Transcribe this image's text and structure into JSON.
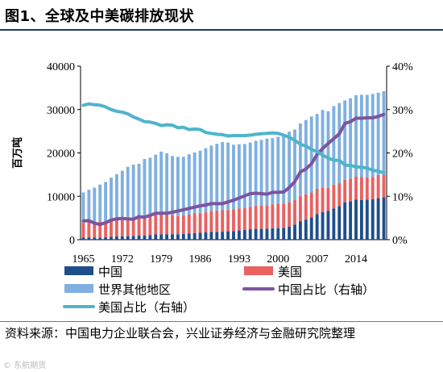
{
  "figure_title": "图1、全球及中美碳排放现状",
  "source": "资料来源：中国电力企业联合会，兴业证券经济与金融研究院整理",
  "watermark": "© 东航期货",
  "colors": {
    "china": "#1f4e8c",
    "usa": "#e96161",
    "rest": "#7fb0e0",
    "china_share": "#7b55a0",
    "usa_share": "#4fb4cc",
    "title_rule": "#1a3a6b"
  },
  "chart_data": {
    "type": "bar",
    "stacked": true,
    "title": "",
    "ylabel": "百万吨",
    "ylabel_right": "",
    "ylim": [
      0,
      40000
    ],
    "yticks": [
      0,
      10000,
      20000,
      30000,
      40000
    ],
    "y2lim": [
      0,
      40
    ],
    "y2ticks": [
      "0%",
      "10%",
      "20%",
      "30%",
      "40%"
    ],
    "xticks": [
      "1965",
      "1972",
      "1979",
      "1986",
      "1993",
      "2000",
      "2007",
      "2014"
    ],
    "grid": false,
    "legend_position": "bottom",
    "x": [
      1965,
      1966,
      1967,
      1968,
      1969,
      1970,
      1971,
      1972,
      1973,
      1974,
      1975,
      1976,
      1977,
      1978,
      1979,
      1980,
      1981,
      1982,
      1983,
      1984,
      1985,
      1986,
      1987,
      1988,
      1989,
      1990,
      1991,
      1992,
      1993,
      1994,
      1995,
      1996,
      1997,
      1998,
      1999,
      2000,
      2001,
      2002,
      2003,
      2004,
      2005,
      2006,
      2007,
      2008,
      2009,
      2010,
      2011,
      2012,
      2013,
      2014,
      2015,
      2016,
      2017,
      2018,
      2019
    ],
    "series": [
      {
        "name": "中国",
        "kind": "bar",
        "values": [
          480,
          540,
          460,
          450,
          530,
          650,
          740,
          790,
          810,
          830,
          950,
          980,
          1070,
          1220,
          1240,
          1220,
          1210,
          1250,
          1310,
          1400,
          1500,
          1580,
          1670,
          1780,
          1810,
          1840,
          1930,
          2000,
          2130,
          2260,
          2410,
          2490,
          2490,
          2500,
          2610,
          2650,
          2700,
          3020,
          3480,
          4260,
          4620,
          5110,
          5890,
          6340,
          6620,
          7210,
          7710,
          8620,
          8820,
          9220,
          9180,
          9200,
          9300,
          9560,
          9810
        ]
      },
      {
        "name": "美国",
        "kind": "bar",
        "values": [
          3400,
          3470,
          3530,
          3650,
          3650,
          3900,
          4100,
          4200,
          4450,
          4350,
          4200,
          4400,
          4500,
          4600,
          4650,
          4600,
          4450,
          4200,
          4250,
          4400,
          4550,
          4500,
          4650,
          4850,
          4900,
          4950,
          4900,
          5000,
          5050,
          5130,
          5180,
          5300,
          5400,
          5450,
          5500,
          5680,
          5620,
          5650,
          5700,
          5800,
          5820,
          5760,
          5840,
          5650,
          5310,
          5470,
          5350,
          5200,
          5280,
          5330,
          5250,
          5170,
          5150,
          5330,
          5170
        ]
      },
      {
        "name": "世界其他地区",
        "kind": "bar",
        "values": [
          7020,
          7490,
          8010,
          8600,
          9120,
          9750,
          10260,
          10910,
          11540,
          12120,
          12350,
          13220,
          13330,
          13780,
          14410,
          14080,
          13640,
          13650,
          13540,
          13900,
          14050,
          14420,
          14780,
          15070,
          15390,
          15710,
          15570,
          14900,
          14820,
          14680,
          14810,
          15010,
          15110,
          15350,
          15290,
          15370,
          15880,
          16230,
          16220,
          16740,
          17160,
          17530,
          17270,
          17910,
          17670,
          18120,
          18440,
          18280,
          18500,
          18750,
          18970,
          19030,
          19150,
          19010,
          19240
        ]
      },
      {
        "name": "中国占比（右轴）",
        "kind": "line",
        "axis": "right",
        "values": [
          4.3,
          4.4,
          3.8,
          3.5,
          3.9,
          4.5,
          4.8,
          4.9,
          4.8,
          4.7,
          5.3,
          5.2,
          5.6,
          6.1,
          6.1,
          6.1,
          6.3,
          6.6,
          6.9,
          7.2,
          7.5,
          7.8,
          8.0,
          8.3,
          8.3,
          8.3,
          8.7,
          9.1,
          9.6,
          10.1,
          10.6,
          10.7,
          10.6,
          10.5,
          10.9,
          10.9,
          11.0,
          12.0,
          13.4,
          15.6,
          16.3,
          17.5,
          19.6,
          21.0,
          22.2,
          23.3,
          24.4,
          26.8,
          27.2,
          28.0,
          28.0,
          28.1,
          28.1,
          28.4,
          28.9
        ]
      },
      {
        "name": "美国占比（右轴）",
        "kind": "line",
        "axis": "right",
        "values": [
          31.0,
          31.3,
          31.1,
          31.0,
          30.6,
          30.0,
          29.6,
          29.4,
          29.0,
          28.3,
          27.8,
          27.2,
          27.1,
          26.8,
          26.3,
          26.5,
          26.4,
          25.8,
          25.9,
          25.4,
          25.5,
          25.4,
          24.7,
          24.5,
          24.3,
          24.2,
          23.9,
          24.0,
          24.0,
          24.0,
          24.1,
          24.3,
          24.4,
          24.5,
          24.6,
          24.5,
          24.1,
          23.6,
          22.9,
          22.0,
          21.6,
          20.8,
          20.3,
          19.5,
          18.8,
          18.3,
          18.3,
          17.2,
          17.1,
          16.8,
          16.7,
          16.5,
          16.0,
          15.8,
          15.4
        ]
      }
    ]
  }
}
